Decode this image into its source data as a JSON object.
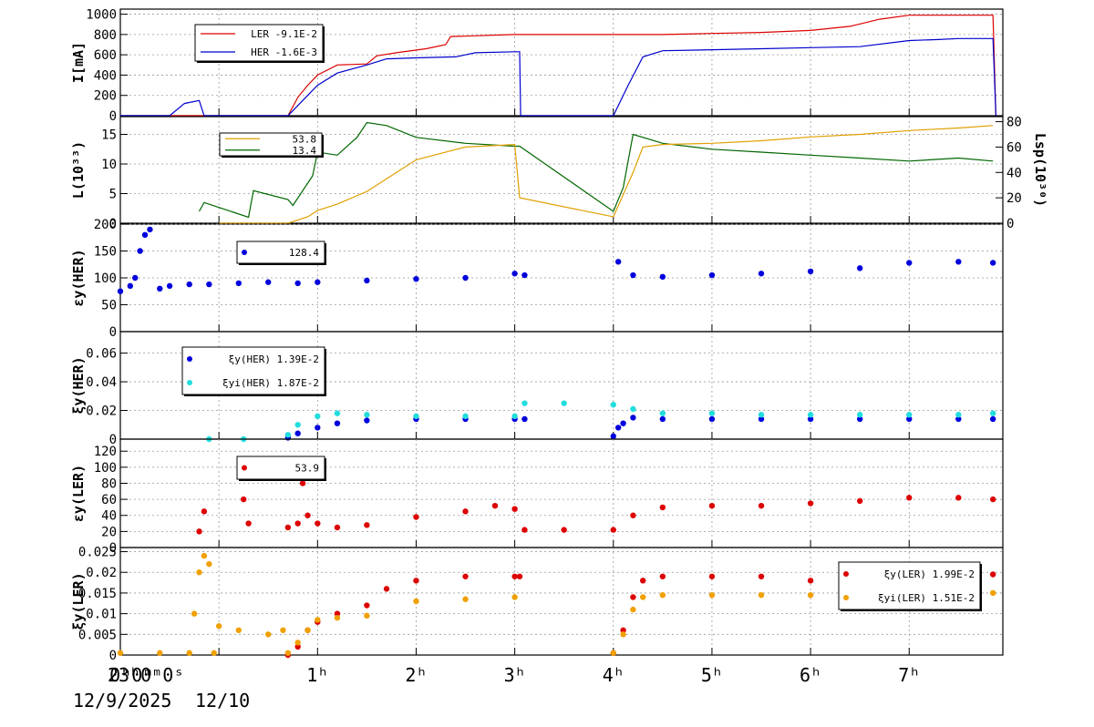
{
  "x_axis": {
    "tick_labels": [
      "0ʰ0ᵐ",
      "1ʰ",
      "2ʰ",
      "3ʰ",
      "4ʰ",
      "5ʰ",
      "6ʰ",
      "7ʰ"
    ],
    "tick_hours": [
      0,
      1,
      2,
      3,
      4,
      5,
      6,
      7
    ],
    "start_label": "23ʰ0ᵐ0ˢ",
    "start_date": "12/9/2025",
    "second_date": "12/10",
    "xlim": [
      -1.0,
      7.95
    ]
  },
  "chart_data": [
    {
      "type": "line",
      "ylabel": "I[mA]",
      "ylim": [
        0,
        1050
      ],
      "yticks": [
        0,
        200,
        400,
        600,
        800,
        1000
      ],
      "grid": true,
      "legend_position": "top-left",
      "legend": [
        {
          "label": "LER",
          "value": "-9.1E-2",
          "color": "#dd0000"
        },
        {
          "label": "HER",
          "value": "-1.6E-3",
          "color": "#0000cc"
        }
      ],
      "series": [
        {
          "name": "LER",
          "color": "#dd0000",
          "x": [
            -1.0,
            -0.1,
            -0.12,
            0.55,
            0.7,
            0.8,
            0.9,
            1.0,
            1.2,
            1.5,
            1.6,
            1.8,
            2.1,
            2.3,
            2.35,
            3.0,
            3.5,
            4.0,
            4.5,
            5.0,
            5.5,
            6.0,
            6.4,
            6.7,
            7.0,
            7.5,
            7.85,
            7.88
          ],
          "y": [
            0,
            0,
            0,
            0,
            0,
            180,
            300,
            400,
            500,
            510,
            590,
            620,
            660,
            700,
            780,
            800,
            800,
            800,
            800,
            810,
            820,
            840,
            880,
            950,
            990,
            990,
            990,
            0
          ]
        },
        {
          "name": "HER",
          "color": "#0000cc",
          "x": [
            -1.0,
            -0.5,
            -0.35,
            -0.2,
            -0.15,
            0.0,
            0.7,
            0.75,
            0.9,
            1.0,
            1.2,
            1.5,
            1.7,
            2.0,
            2.4,
            2.6,
            3.0,
            3.05,
            3.06,
            4.0,
            4.15,
            4.3,
            4.5,
            5.0,
            5.5,
            6.0,
            6.5,
            7.0,
            7.3,
            7.5,
            7.85,
            7.88
          ],
          "y": [
            0,
            0,
            120,
            150,
            0,
            0,
            0,
            50,
            200,
            300,
            420,
            500,
            560,
            570,
            580,
            620,
            630,
            630,
            0,
            0,
            300,
            580,
            640,
            650,
            660,
            670,
            680,
            740,
            750,
            760,
            760,
            0
          ]
        }
      ]
    },
    {
      "type": "line",
      "ylabel": "L(10³³)",
      "ylabel_right": "Lsp(10³⁰)",
      "ylim": [
        0,
        18
      ],
      "yticks": [
        0,
        5,
        10,
        15
      ],
      "ylim_right": [
        0,
        84
      ],
      "yticks_right": [
        0,
        20,
        40,
        60,
        80
      ],
      "grid": true,
      "legend": [
        {
          "label": "",
          "value": "53.8",
          "color": "#e0a000"
        },
        {
          "label": "",
          "value": "13.4",
          "color": "#006600"
        }
      ],
      "series": [
        {
          "name": "L",
          "color": "#006600",
          "axis": "left",
          "x": [
            -0.2,
            -0.15,
            0.3,
            0.35,
            0.7,
            0.75,
            0.95,
            1.0,
            1.2,
            1.4,
            1.5,
            1.7,
            2.0,
            2.5,
            3.0,
            3.05,
            4.0,
            4.1,
            4.2,
            4.5,
            5.0,
            5.5,
            6.0,
            6.5,
            7.0,
            7.5,
            7.85
          ],
          "y": [
            2,
            3.5,
            1.0,
            5.5,
            4,
            3,
            8,
            12,
            11.5,
            14.5,
            17,
            16.5,
            14.5,
            13.5,
            13,
            13,
            2,
            6,
            15,
            13.5,
            12.5,
            12,
            11.5,
            11,
            10.5,
            11,
            10.5
          ]
        },
        {
          "name": "Lsp",
          "color": "#e0a000",
          "axis": "right",
          "x": [
            0.0,
            0.7,
            0.9,
            1.0,
            1.2,
            1.5,
            1.7,
            2.0,
            2.5,
            3.0,
            3.05,
            4.0,
            4.2,
            4.3,
            4.5,
            5.0,
            5.5,
            6.0,
            6.5,
            7.0,
            7.5,
            7.85
          ],
          "y": [
            0,
            0,
            5,
            10,
            15,
            25,
            35,
            50,
            60,
            62,
            20,
            5,
            40,
            60,
            62,
            63,
            65,
            68,
            70,
            73,
            75,
            77
          ]
        }
      ]
    },
    {
      "type": "scatter",
      "ylabel": "εy(HER)",
      "ylim": [
        0,
        200
      ],
      "yticks": [
        0,
        50,
        100,
        150,
        200
      ],
      "grid": true,
      "legend": [
        {
          "label": "",
          "value": "128.4",
          "color": "#0000dd"
        }
      ],
      "series": [
        {
          "name": "εy(HER)",
          "color": "#0000dd",
          "x": [
            -1.0,
            -0.9,
            -0.85,
            -0.8,
            -0.75,
            -0.7,
            -0.6,
            -0.5,
            -0.3,
            -0.1,
            0.2,
            0.5,
            0.8,
            1.0,
            1.5,
            2.0,
            2.5,
            3.0,
            3.1,
            4.05,
            4.2,
            4.5,
            5.0,
            5.5,
            6.0,
            6.5,
            7.0,
            7.5,
            7.85
          ],
          "y": [
            75,
            85,
            100,
            150,
            180,
            190,
            80,
            85,
            88,
            88,
            90,
            92,
            90,
            92,
            95,
            98,
            100,
            108,
            105,
            130,
            105,
            102,
            105,
            108,
            112,
            118,
            128,
            130,
            128
          ]
        }
      ]
    },
    {
      "type": "scatter",
      "ylabel": "ξy(HER)",
      "ylim": [
        0,
        0.075
      ],
      "yticks": [
        0,
        0.02,
        0.04,
        0.06
      ],
      "ytick_labels": [
        "0",
        "0.02",
        "0.04",
        "0.06"
      ],
      "grid": true,
      "legend": [
        {
          "label": "ξy(HER)",
          "value": "1.39E-2",
          "color": "#0000dd"
        },
        {
          "label": "ξyi(HER)",
          "value": "1.87E-2",
          "color": "#22dddd"
        }
      ],
      "series": [
        {
          "name": "ξy(HER)",
          "color": "#0000dd",
          "x": [
            0.7,
            0.8,
            1.0,
            1.2,
            1.5,
            2.0,
            2.5,
            3.0,
            3.1,
            4.0,
            4.05,
            4.1,
            4.2,
            4.5,
            5.0,
            5.5,
            6.0,
            6.5,
            7.0,
            7.5,
            7.85
          ],
          "y": [
            0.001,
            0.004,
            0.008,
            0.011,
            0.013,
            0.014,
            0.014,
            0.014,
            0.014,
            0.002,
            0.008,
            0.011,
            0.015,
            0.014,
            0.014,
            0.014,
            0.014,
            0.014,
            0.014,
            0.014,
            0.014
          ]
        },
        {
          "name": "ξyi(HER)",
          "color": "#22dddd",
          "x": [
            -0.1,
            0.25,
            0.7,
            0.8,
            1.0,
            1.2,
            1.5,
            2.0,
            2.5,
            3.0,
            3.1,
            3.5,
            4.0,
            4.2,
            4.5,
            5.0,
            5.5,
            6.0,
            6.5,
            7.0,
            7.5,
            7.85
          ],
          "y": [
            0.0,
            0.0,
            0.003,
            0.01,
            0.016,
            0.018,
            0.017,
            0.016,
            0.016,
            0.016,
            0.025,
            0.025,
            0.024,
            0.021,
            0.018,
            0.018,
            0.017,
            0.017,
            0.017,
            0.017,
            0.017,
            0.018
          ]
        }
      ]
    },
    {
      "type": "scatter",
      "ylabel": "εy(LER)",
      "ylim": [
        0,
        135
      ],
      "yticks": [
        0,
        20,
        40,
        60,
        80,
        100,
        120
      ],
      "grid": true,
      "legend": [
        {
          "label": "",
          "value": "53.9",
          "color": "#dd0000"
        }
      ],
      "series": [
        {
          "name": "εy(LER)",
          "color": "#dd0000",
          "x": [
            -0.2,
            -0.15,
            0.25,
            0.3,
            0.7,
            0.8,
            0.85,
            0.9,
            1.0,
            1.2,
            1.5,
            2.0,
            2.5,
            2.8,
            3.0,
            3.1,
            3.5,
            4.0,
            4.2,
            4.5,
            5.0,
            5.5,
            6.0,
            6.5,
            7.0,
            7.5,
            7.85
          ],
          "y": [
            20,
            45,
            60,
            30,
            25,
            30,
            80,
            40,
            30,
            25,
            28,
            38,
            45,
            52,
            48,
            22,
            22,
            22,
            40,
            50,
            52,
            52,
            55,
            58,
            62,
            62,
            60
          ]
        }
      ]
    },
    {
      "type": "scatter",
      "ylabel": "ξy(LER)",
      "ylim": [
        0,
        0.026
      ],
      "yticks": [
        0,
        0.005,
        0.01,
        0.015,
        0.02,
        0.025
      ],
      "ytick_labels": [
        "0",
        "0.005",
        "0.01",
        "0.015",
        "0.02",
        "0.025"
      ],
      "grid": true,
      "legend": [
        {
          "label": "ξy(LER)",
          "value": "1.99E-2",
          "color": "#dd0000"
        },
        {
          "label": "ξyi(LER)",
          "value": "1.51E-2",
          "color": "#f0a000"
        }
      ],
      "series": [
        {
          "name": "ξy(LER)",
          "color": "#dd0000",
          "x": [
            0.7,
            0.8,
            0.9,
            1.0,
            1.2,
            1.5,
            1.7,
            2.0,
            2.5,
            3.0,
            3.05,
            4.0,
            4.1,
            4.2,
            4.3,
            4.5,
            5.0,
            5.5,
            6.0,
            6.5,
            7.0,
            7.5,
            7.85
          ],
          "y": [
            0.0,
            0.002,
            0.006,
            0.008,
            0.01,
            0.012,
            0.016,
            0.018,
            0.019,
            0.019,
            0.019,
            0.0005,
            0.006,
            0.014,
            0.018,
            0.019,
            0.019,
            0.019,
            0.018,
            0.018,
            0.019,
            0.019,
            0.0195
          ]
        },
        {
          "name": "ξyi(LER)",
          "color": "#f0a000",
          "x": [
            -1.0,
            -0.6,
            -0.3,
            -0.25,
            -0.2,
            -0.15,
            -0.1,
            -0.05,
            0.0,
            0.2,
            0.5,
            0.65,
            0.7,
            0.8,
            0.9,
            1.0,
            1.2,
            1.5,
            2.0,
            2.5,
            3.0,
            4.0,
            4.1,
            4.2,
            4.3,
            4.5,
            5.0,
            5.5,
            6.0,
            6.5,
            7.0,
            7.5,
            7.85
          ],
          "y": [
            0.0005,
            0.0005,
            0.0005,
            0.01,
            0.02,
            0.024,
            0.022,
            0.0005,
            0.007,
            0.006,
            0.005,
            0.006,
            0.0005,
            0.003,
            0.006,
            0.0085,
            0.009,
            0.0095,
            0.013,
            0.0135,
            0.014,
            0.0005,
            0.005,
            0.011,
            0.014,
            0.0145,
            0.0145,
            0.0145,
            0.0145,
            0.0145,
            0.0145,
            0.015,
            0.015
          ]
        }
      ]
    }
  ]
}
